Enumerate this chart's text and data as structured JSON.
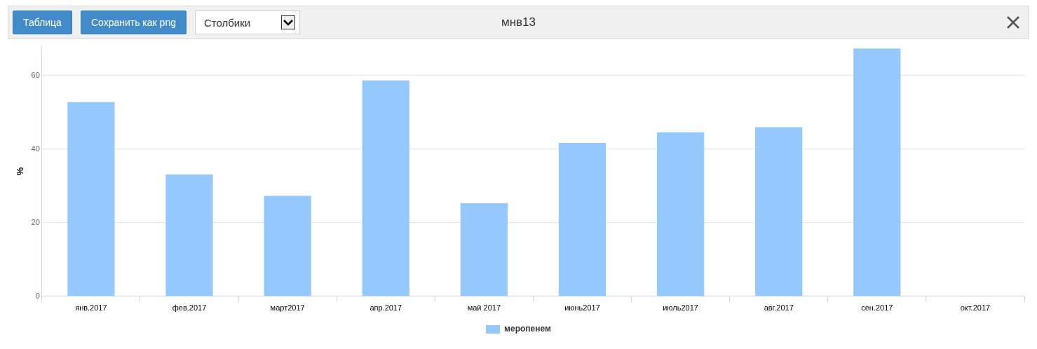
{
  "chart_data": {
    "type": "bar",
    "title": "мнв13",
    "ylabel": "%",
    "annotations": [
      "Таблица",
      "Сохранить как png",
      "Столбики"
    ],
    "categories": [
      "янв.2017",
      "фев.2017",
      "март2017",
      "апр.2017",
      "май 2017",
      "июнь2017",
      "июль2017",
      "авг.2017",
      "сен.2017",
      "окт.2017"
    ],
    "series": [
      {
        "name": "меропенем",
        "color": "#95c8fc",
        "values": [
          52.8,
          33.1,
          27.3,
          58.7,
          25.3,
          41.7,
          44.6,
          46.0,
          67.4,
          null
        ]
      }
    ],
    "ylim": [
      0,
      68
    ],
    "yticks": [
      0,
      20,
      40,
      60
    ],
    "grid": "y",
    "legend": "bottom"
  }
}
